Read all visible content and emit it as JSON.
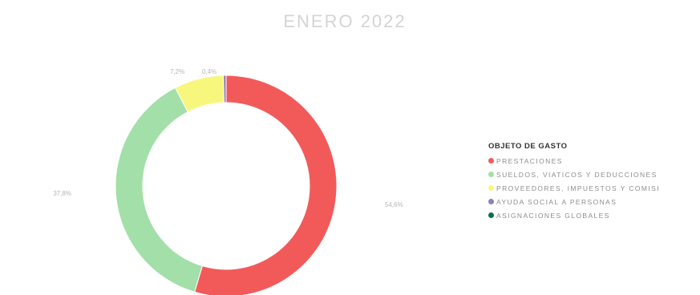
{
  "chart_data": {
    "type": "pie",
    "title": "ENERO 2022",
    "legend_title": "OBJETO DE GASTO",
    "legend_position": "right",
    "categories": [
      "PRESTACIONES",
      "SUELDOS, VIATICOS Y DEDUCCIONES",
      "PROVEEDORES, IMPUESTOS Y COMISI",
      "AYUDA SOCIAL A PERSONAS",
      "ASIGNACIONES GLOBALES"
    ],
    "values": [
      54.6,
      37.8,
      7.2,
      0.4,
      0.0
    ],
    "data_labels": [
      "54,6%",
      "37,8%",
      "7,2%",
      "0,4%",
      ""
    ],
    "colors": [
      "#f25a5a",
      "#a3dfa8",
      "#f7f77e",
      "#8f7fbf",
      "#0e6e46"
    ]
  }
}
